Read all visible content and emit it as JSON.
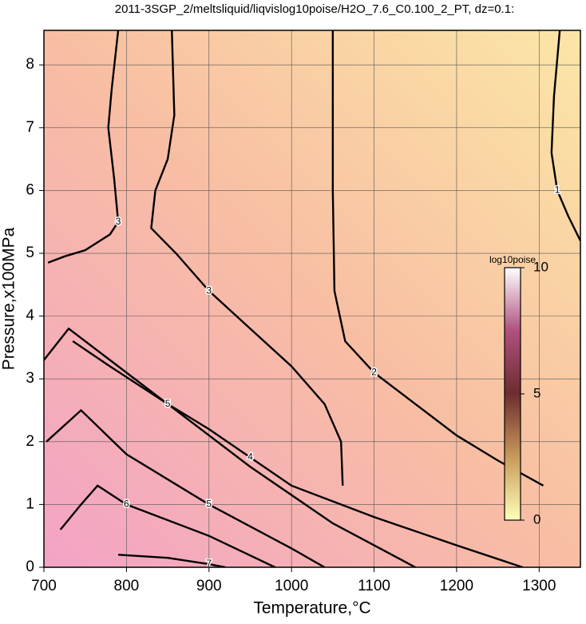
{
  "chart_data": {
    "type": "contour",
    "title": "2011-3SGP_2/meltsliquid/liqvislog10poise/H2O_7.6_C0.100_2_PT, dz=0.1:",
    "x_label": "Temperature,°C",
    "y_label": "Pressure,x100MPa",
    "xlim": [
      700,
      1350
    ],
    "ylim": [
      0,
      8.55
    ],
    "xticks": [
      700,
      800,
      900,
      1000,
      1100,
      1200,
      1300
    ],
    "yticks": [
      0,
      1,
      2,
      3,
      4,
      5,
      6,
      7,
      8
    ],
    "grid": true,
    "background_colors": [
      "#f3a3c6",
      "#f8bea3",
      "#fbe6a6"
    ],
    "contours": [
      {
        "level": 1,
        "x": [
          1325,
          1318,
          1315,
          1322,
          1335,
          1350
        ],
        "y": [
          8.55,
          7.5,
          6.6,
          6.0,
          5.6,
          5.2
        ]
      },
      {
        "level": 2,
        "x": [
          1050,
          1050,
          1052,
          1065,
          1100,
          1150,
          1200,
          1250,
          1305
        ],
        "y": [
          8.55,
          6.0,
          4.4,
          3.6,
          3.1,
          2.6,
          2.1,
          1.7,
          1.3
        ]
      },
      {
        "level": 3,
        "x": [
          790,
          782,
          778,
          785,
          790,
          780,
          750,
          725,
          705
        ],
        "y": [
          8.55,
          7.6,
          7.0,
          6.2,
          5.5,
          5.3,
          5.05,
          4.95,
          4.85
        ]
      },
      {
        "level": 3,
        "x": [
          855,
          858,
          850,
          835,
          830,
          860,
          900,
          950,
          1000,
          1040,
          1060,
          1062
        ],
        "y": [
          8.55,
          7.2,
          6.5,
          6.0,
          5.4,
          5.0,
          4.4,
          3.8,
          3.2,
          2.6,
          2.0,
          1.3
        ]
      },
      {
        "level": 4,
        "x": [
          735,
          780,
          850,
          900,
          950,
          1000,
          1100,
          1200,
          1280
        ],
        "y": [
          3.6,
          3.2,
          2.6,
          2.2,
          1.75,
          1.3,
          0.8,
          0.35,
          0
        ]
      },
      {
        "level": 5,
        "x": [
          700,
          730,
          780,
          850,
          950,
          1050,
          1150
        ],
        "y": [
          3.3,
          3.8,
          3.3,
          2.6,
          1.6,
          0.7,
          0
        ]
      },
      {
        "level": 5,
        "x": [
          703,
          745,
          800,
          900,
          1000,
          1040
        ],
        "y": [
          2.0,
          2.5,
          1.8,
          1.0,
          0.3,
          0
        ]
      },
      {
        "level": 6,
        "x": [
          720,
          745,
          765,
          800,
          900,
          980
        ],
        "y": [
          0.6,
          1.0,
          1.3,
          1.0,
          0.5,
          0
        ]
      },
      {
        "level": 7,
        "x": [
          790,
          850,
          900,
          920
        ],
        "y": [
          0.2,
          0.15,
          0.05,
          0
        ]
      }
    ],
    "colorbar": {
      "label": "log10poise",
      "lim": [
        0,
        10
      ],
      "ticks": [
        0,
        5,
        10
      ],
      "colors": [
        "#ffffb8",
        "#c89a5a",
        "#6e2c30",
        "#b0507e",
        "#ffffff"
      ]
    }
  }
}
